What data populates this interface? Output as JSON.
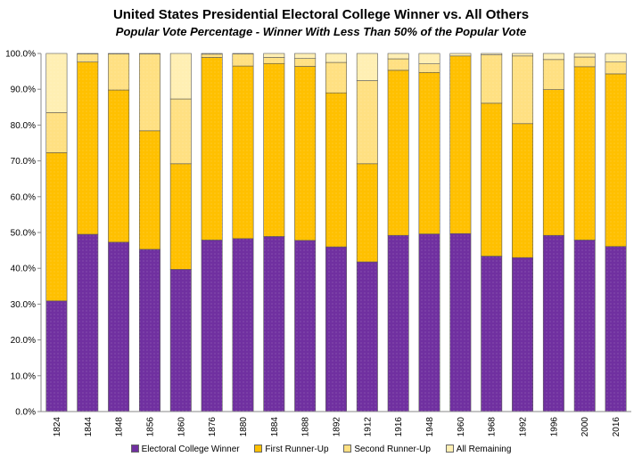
{
  "chart_data": {
    "type": "bar",
    "stacked": true,
    "title": "United States Presidential Electoral College Winner vs. All Others",
    "subtitle": "Popular Vote Percentage - Winner With Less Than 50% of the Popular Vote",
    "categories": [
      "1824",
      "1844",
      "1848",
      "1856",
      "1860",
      "1876",
      "1880",
      "1884",
      "1888",
      "1892",
      "1912",
      "1916",
      "1948",
      "1960",
      "1968",
      "1992",
      "1996",
      "2000",
      "2016"
    ],
    "series": [
      {
        "name": "Electoral College Winner",
        "color": "#7030A0",
        "values": [
          30.9,
          49.5,
          47.3,
          45.3,
          39.7,
          47.9,
          48.3,
          48.9,
          47.8,
          46.0,
          41.8,
          49.2,
          49.6,
          49.7,
          43.4,
          43.0,
          49.2,
          47.9,
          46.1
        ]
      },
      {
        "name": "First Runner-Up",
        "color": "#FFC000",
        "values": [
          41.4,
          48.1,
          42.5,
          33.1,
          29.5,
          51.0,
          48.2,
          48.3,
          48.6,
          43.0,
          27.4,
          46.1,
          45.1,
          49.6,
          42.7,
          37.4,
          40.7,
          48.4,
          48.2
        ]
      },
      {
        "name": "Second Runner-Up",
        "color": "#FFE082",
        "values": [
          11.2,
          2.3,
          10.1,
          21.5,
          18.1,
          0.9,
          3.4,
          1.7,
          2.2,
          8.5,
          23.2,
          3.2,
          2.4,
          0.0,
          13.5,
          18.9,
          8.4,
          2.7,
          3.3
        ]
      },
      {
        "name": "All Remaining",
        "color": "#FFEFB3",
        "values": [
          16.5,
          0.1,
          0.1,
          0.1,
          12.7,
          0.2,
          0.1,
          1.1,
          1.4,
          2.5,
          7.6,
          1.5,
          2.9,
          0.7,
          0.4,
          0.7,
          1.7,
          1.0,
          2.4
        ]
      }
    ],
    "ylabel": "",
    "xlabel": "",
    "ylim": [
      0,
      100
    ],
    "yticks": [
      "0.0%",
      "10.0%",
      "20.0%",
      "30.0%",
      "40.0%",
      "50.0%",
      "60.0%",
      "70.0%",
      "80.0%",
      "90.0%",
      "100.0%"
    ],
    "grid": false,
    "legend": "bottom"
  }
}
